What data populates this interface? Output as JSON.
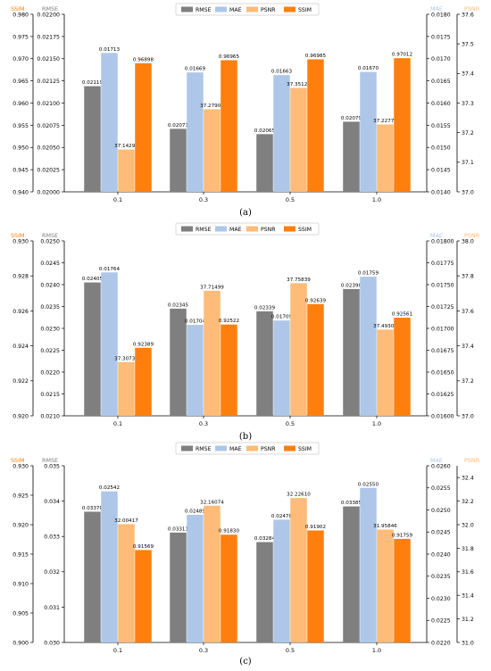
{
  "chart_data": [
    {
      "type": "bar",
      "caption": "(a)",
      "categories": [
        "0.1",
        "0.3",
        "0.5",
        "1.0"
      ],
      "legend_position": "top-center",
      "grid": false,
      "series": [
        {
          "name": "RMSE",
          "axis": "RMSE",
          "values": [
            0.02119,
            0.02071,
            0.02065,
            0.02079
          ],
          "labels": [
            "0.02119",
            "0.02071",
            "0.02065",
            "0.02079"
          ],
          "color": "#7f7f7f"
        },
        {
          "name": "MAE",
          "axis": "MAE",
          "values": [
            0.01713,
            0.01669,
            0.01663,
            0.0167
          ],
          "labels": [
            "0.01713",
            "0.01669",
            "0.01663",
            "0.01670"
          ],
          "color": "#aec7e8"
        },
        {
          "name": "PSNR",
          "axis": "PSNR",
          "values": [
            37.14298,
            37.279,
            37.3512,
            37.22771
          ],
          "labels": [
            "37.14298",
            "37.27900",
            "37.35120",
            "37.22771"
          ],
          "color": "#ffbb78"
        },
        {
          "name": "SSIM",
          "axis": "SSIM",
          "values": [
            0.96898,
            0.96965,
            0.96985,
            0.97012
          ],
          "labels": [
            "0.96898",
            "0.96965",
            "0.96985",
            "0.97012"
          ],
          "color": "#ff7f0e"
        }
      ],
      "axes": {
        "SSIM": {
          "label": "SSIM",
          "color": "#ff7f0e",
          "side": "left-outer",
          "ylim": [
            0.94,
            0.98
          ],
          "ticks": [
            "0.940",
            "0.945",
            "0.950",
            "0.955",
            "0.960",
            "0.965",
            "0.970",
            "0.975",
            "0.980"
          ]
        },
        "RMSE": {
          "label": "RMSE",
          "color": "#7f7f7f",
          "side": "left-inner",
          "ylim": [
            0.02,
            0.022
          ],
          "ticks": [
            "0.02000",
            "0.02025",
            "0.02050",
            "0.02075",
            "0.02100",
            "0.02125",
            "0.02150",
            "0.02175",
            "0.02200"
          ]
        },
        "MAE": {
          "label": "MAE",
          "color": "#aec7e8",
          "side": "right-inner",
          "ylim": [
            0.014,
            0.018
          ],
          "ticks": [
            "0.0140",
            "0.0145",
            "0.0150",
            "0.0155",
            "0.0160",
            "0.0165",
            "0.0170",
            "0.0175",
            "0.0180"
          ]
        },
        "PSNR": {
          "label": "PSNR",
          "color": "#ffbb78",
          "side": "right-outer",
          "ylim": [
            37.0,
            37.6
          ],
          "ticks": [
            "37.0",
            "37.1",
            "37.2",
            "37.3",
            "37.4",
            "37.5",
            "37.6"
          ]
        }
      }
    },
    {
      "type": "bar",
      "caption": "(b)",
      "categories": [
        "0.1",
        "0.3",
        "0.5",
        "1.0"
      ],
      "legend_position": "top-center",
      "grid": false,
      "series": [
        {
          "name": "RMSE",
          "axis": "RMSE",
          "values": [
            0.02405,
            0.02345,
            0.02339,
            0.0239
          ],
          "labels": [
            "0.02405",
            "0.02345",
            "0.02339",
            "0.02390"
          ],
          "color": "#7f7f7f"
        },
        {
          "name": "MAE",
          "axis": "MAE",
          "values": [
            0.01764,
            0.01704,
            0.01709,
            0.01759
          ],
          "labels": [
            "0.01764",
            "0.01704",
            "0.01709",
            "0.01759"
          ],
          "color": "#aec7e8"
        },
        {
          "name": "PSNR",
          "axis": "PSNR",
          "values": [
            37.30735,
            37.71499,
            37.75839,
            37.49301
          ],
          "labels": [
            "37.30735",
            "37.71499",
            "37.75839",
            "37.49301"
          ],
          "color": "#ffbb78"
        },
        {
          "name": "SSIM",
          "axis": "SSIM",
          "values": [
            0.92389,
            0.92522,
            0.92639,
            0.92561
          ],
          "labels": [
            "0.92389",
            "0.92522",
            "0.92639",
            "0.92561"
          ],
          "color": "#ff7f0e"
        }
      ],
      "axes": {
        "SSIM": {
          "label": "SSIM",
          "color": "#ff7f0e",
          "side": "left-outer",
          "ylim": [
            0.92,
            0.93
          ],
          "ticks": [
            "0.920",
            "0.922",
            "0.924",
            "0.926",
            "0.928",
            "0.930"
          ]
        },
        "RMSE": {
          "label": "RMSE",
          "color": "#7f7f7f",
          "side": "left-inner",
          "ylim": [
            0.021,
            0.025
          ],
          "ticks": [
            "0.0210",
            "0.0215",
            "0.0220",
            "0.0225",
            "0.0230",
            "0.0235",
            "0.0240",
            "0.0245",
            "0.0250"
          ]
        },
        "MAE": {
          "label": "MAE",
          "color": "#aec7e8",
          "side": "right-inner",
          "ylim": [
            0.016,
            0.018
          ],
          "ticks": [
            "0.01600",
            "0.01625",
            "0.01650",
            "0.01675",
            "0.01700",
            "0.01725",
            "0.01750",
            "0.01775",
            "0.01800"
          ]
        },
        "PSNR": {
          "label": "PSNR",
          "color": "#ffbb78",
          "side": "right-outer",
          "ylim": [
            37.0,
            38.0
          ],
          "ticks": [
            "37.0",
            "37.2",
            "37.4",
            "37.6",
            "37.8",
            "38.0"
          ]
        }
      }
    },
    {
      "type": "bar",
      "caption": "(c)",
      "categories": [
        "0.1",
        "0.3",
        "0.5",
        "1.0"
      ],
      "legend_position": "top-center",
      "grid": false,
      "series": [
        {
          "name": "RMSE",
          "axis": "RMSE",
          "values": [
            0.0337,
            0.03311,
            0.03284,
            0.03385
          ],
          "labels": [
            "0.03370",
            "0.03311",
            "0.03284",
            "0.03385"
          ],
          "color": "#7f7f7f"
        },
        {
          "name": "MAE",
          "axis": "MAE",
          "values": [
            0.02542,
            0.02489,
            0.02478,
            0.0255
          ],
          "labels": [
            "0.02542",
            "0.02489",
            "0.02478",
            "0.02550"
          ],
          "color": "#aec7e8"
        },
        {
          "name": "PSNR",
          "axis": "PSNR",
          "values": [
            32.00417,
            32.16074,
            32.2261,
            31.95846
          ],
          "labels": [
            "32.00417",
            "32.16074",
            "32.22610",
            "31.95846"
          ],
          "color": "#ffbb78"
        },
        {
          "name": "SSIM",
          "axis": "SSIM",
          "values": [
            0.91569,
            0.9183,
            0.91902,
            0.91759
          ],
          "labels": [
            "0.91569",
            "0.91830",
            "0.91902",
            "0.91759"
          ],
          "color": "#ff7f0e"
        }
      ],
      "axes": {
        "SSIM": {
          "label": "SSIM",
          "color": "#ff7f0e",
          "side": "left-outer",
          "ylim": [
            0.9,
            0.93
          ],
          "ticks": [
            "0.900",
            "0.905",
            "0.910",
            "0.915",
            "0.920",
            "0.925",
            "0.930"
          ]
        },
        "RMSE": {
          "label": "RMSE",
          "color": "#7f7f7f",
          "side": "left-inner",
          "ylim": [
            0.03,
            0.035
          ],
          "ticks": [
            "0.030",
            "0.031",
            "0.032",
            "0.033",
            "0.034",
            "0.035"
          ]
        },
        "MAE": {
          "label": "MAE",
          "color": "#aec7e8",
          "side": "right-inner",
          "ylim": [
            0.022,
            0.026
          ],
          "ticks": [
            "0.0220",
            "0.0225",
            "0.0230",
            "0.0235",
            "0.0240",
            "0.0245",
            "0.0250",
            "0.0255",
            "0.0260"
          ]
        },
        "PSNR": {
          "label": "PSNR",
          "color": "#ffbb78",
          "side": "right-outer",
          "ylim": [
            31.0,
            32.5
          ],
          "ticks": [
            "31.0",
            "31.2",
            "31.4",
            "31.6",
            "31.8",
            "32.0",
            "32.2",
            "32.4"
          ]
        }
      }
    }
  ]
}
